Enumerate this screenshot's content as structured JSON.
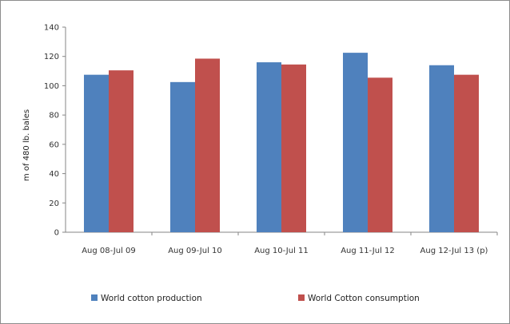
{
  "chart_data": {
    "type": "bar",
    "title": "",
    "xlabel": "",
    "ylabel": "m of 480 lb. bales",
    "ylim": [
      0,
      140
    ],
    "yticks": [
      0,
      20,
      40,
      60,
      80,
      100,
      120,
      140
    ],
    "grid": false,
    "legend_position": "bottom",
    "categories": [
      "Aug 08-Jul 09",
      "Aug 09-Jul 10",
      "Aug 10-Jul 11",
      "Aug 11-Jul 12",
      "Aug 12-Jul 13 (p)"
    ],
    "series": [
      {
        "name": "World cotton production",
        "color": "#4f81bd",
        "values": [
          107.5,
          102.5,
          116,
          122.5,
          114
        ]
      },
      {
        "name": "World Cotton consumption",
        "color": "#c0504d",
        "values": [
          110.5,
          118.5,
          114.5,
          105.5,
          107.5
        ]
      }
    ]
  }
}
